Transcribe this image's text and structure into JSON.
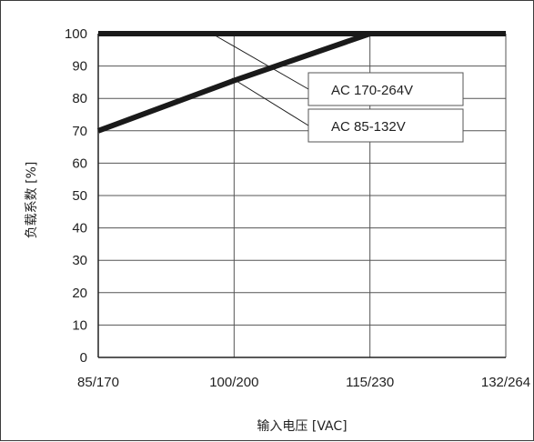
{
  "chart_data": {
    "type": "line",
    "title": "",
    "xlabel": "输入电压 [VAC]",
    "ylabel": "负载系数 [%]",
    "categories": [
      "85/170",
      "100/200",
      "115/230",
      "132/264"
    ],
    "ylim": [
      0,
      100
    ],
    "yticks": [
      "0",
      "10",
      "20",
      "30",
      "40",
      "50",
      "60",
      "70",
      "80",
      "90",
      "100"
    ],
    "grid": true,
    "series": [
      {
        "name": "AC 170-264V",
        "values": [
          100,
          100,
          100,
          100
        ]
      },
      {
        "name": "AC 85-132V",
        "values": [
          70,
          85.5,
          100,
          100
        ]
      }
    ],
    "colors": {
      "line": "#1a1a1a",
      "grid": "#555555",
      "axis": "#222222"
    }
  }
}
